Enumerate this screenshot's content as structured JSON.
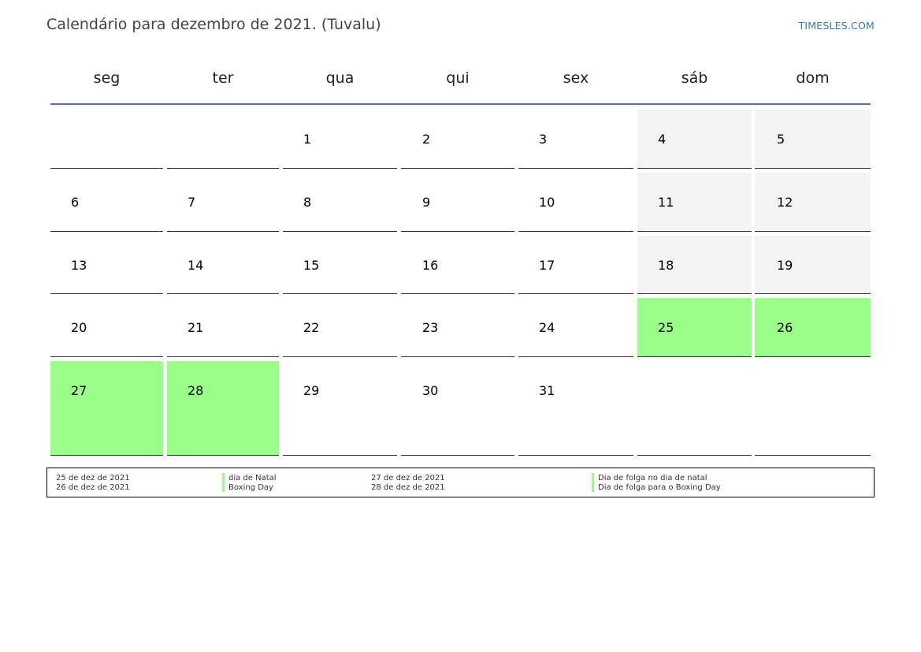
{
  "header": {
    "title": "Calendário para dezembro de 2021. (Tuvalu)",
    "brand": "TIMESLES.COM"
  },
  "weekdays": [
    "seg",
    "ter",
    "qua",
    "qui",
    "sex",
    "sáb",
    "dom"
  ],
  "weeks": [
    [
      "",
      "",
      "1",
      "2",
      "3",
      "4",
      "5"
    ],
    [
      "6",
      "7",
      "8",
      "9",
      "10",
      "11",
      "12"
    ],
    [
      "13",
      "14",
      "15",
      "16",
      "17",
      "18",
      "19"
    ],
    [
      "20",
      "21",
      "22",
      "23",
      "24",
      "25",
      "26"
    ],
    [
      "27",
      "28",
      "29",
      "30",
      "31",
      "",
      ""
    ]
  ],
  "colors": {
    "holiday": "#99ff88",
    "weekend": "#f3f3f3",
    "header_rule": "#5a7395",
    "brand": "#3a78b5"
  },
  "legend": [
    {
      "date": "25 de dez de 2021",
      "name": "dia de Natal"
    },
    {
      "date": "26 de dez de 2021",
      "name": "Boxing Day"
    },
    {
      "date": "27 de dez de 2021",
      "name": "Dia de folga no dia de natal"
    },
    {
      "date": "28 de dez de 2021",
      "name": "Dia de folga para o Boxing Day"
    }
  ]
}
